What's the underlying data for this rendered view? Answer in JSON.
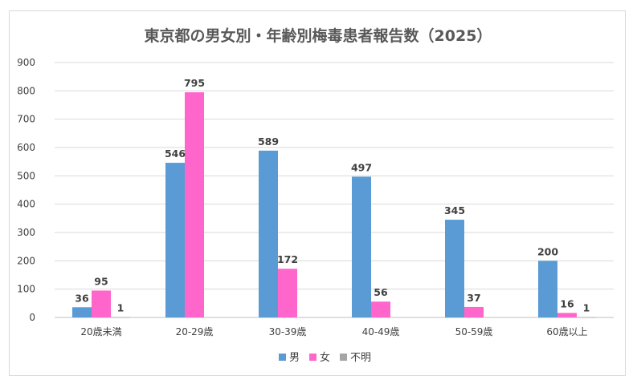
{
  "chart_data": {
    "type": "bar",
    "title": "東京都の男女別・年齢別梅毒患者報告数（2025）",
    "categories": [
      "20歳未満",
      "20-29歳",
      "30-39歳",
      "40-49歳",
      "50-59歳",
      "60歳以上"
    ],
    "series": [
      {
        "name": "男",
        "color": "#5b9bd5",
        "values": [
          36,
          546,
          589,
          497,
          345,
          200
        ]
      },
      {
        "name": "女",
        "color": "#ff66cc",
        "values": [
          95,
          795,
          172,
          56,
          37,
          16
        ]
      },
      {
        "name": "不明",
        "color": "#a5a5a5",
        "values": [
          1,
          0,
          0,
          0,
          0,
          1
        ]
      }
    ],
    "ylim": [
      0,
      900
    ],
    "yticks": [
      0,
      100,
      200,
      300,
      400,
      500,
      600,
      700,
      800,
      900
    ],
    "grid": true,
    "legend": "bottom"
  }
}
